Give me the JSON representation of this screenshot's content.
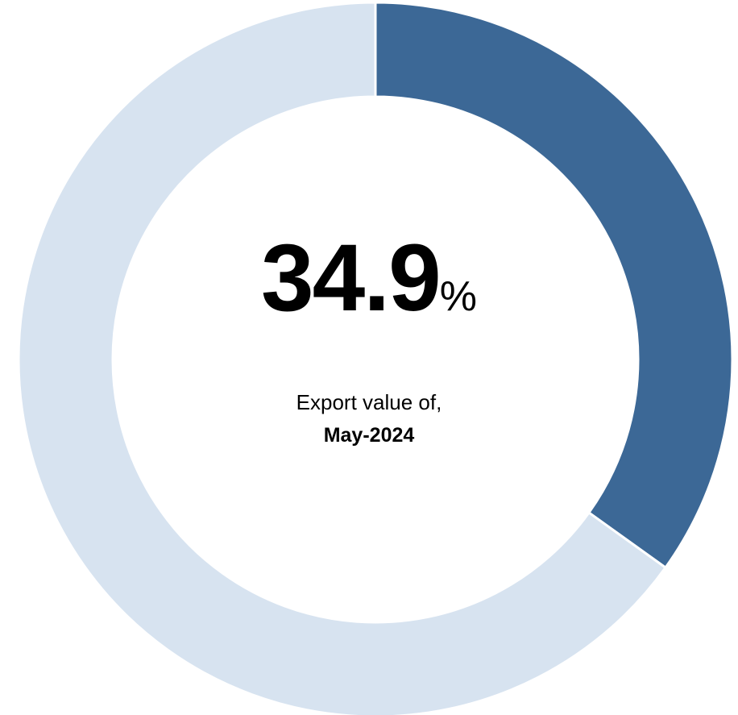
{
  "chart_data": {
    "type": "pie",
    "variant": "donut",
    "slices": [
      {
        "label": "",
        "value": 34.9,
        "color": "#3c6896"
      },
      {
        "label": "",
        "value": 65.1,
        "color": "#d7e3f0"
      }
    ],
    "center_value": "34.9",
    "center_unit": "%",
    "caption": "Export value of,",
    "period": "May-2024"
  }
}
